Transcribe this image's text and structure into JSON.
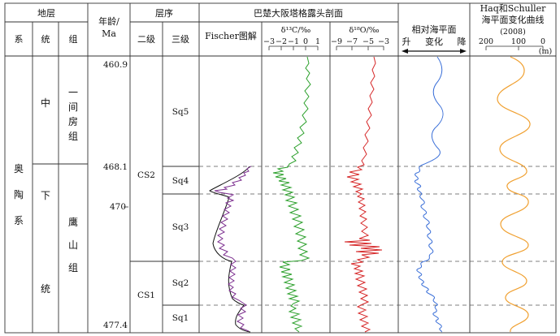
{
  "header": {
    "stratum": "地层",
    "system": "系",
    "series": "统",
    "group": "组",
    "age_line1": "年龄/",
    "age_line2": "Ma",
    "sequence": "层序",
    "order2": "二级",
    "order3": "三级",
    "section_title": "巴楚大阪塔格露头剖面",
    "fischer": "Fischer图解",
    "d13c_label": "δ¹³C/‰",
    "d13c_ticks": [
      "−3",
      "−2",
      "−1",
      "0",
      "1"
    ],
    "d18o_label": "δ¹⁸O/‰",
    "d18o_ticks": [
      "−9",
      "−7",
      "−5",
      "−3"
    ],
    "rsl_title": "相对海平面",
    "rsl_rise": "升",
    "rsl_change": "变化",
    "rsl_fall": "降",
    "haq_line1": "Haq和Schuller",
    "haq_line2": "海平面变化曲线",
    "haq_line3": "(2008)",
    "haq_ticks": [
      "200",
      "100",
      "0"
    ],
    "haq_unit": "(m)"
  },
  "strat": {
    "system_name": [
      "奥",
      "陶",
      "系"
    ],
    "series_middle": "中",
    "series_lower": [
      "下",
      "统"
    ],
    "group_upper": [
      "一",
      "间",
      "房",
      "组"
    ],
    "group_lower": [
      "鹰",
      "山",
      "组"
    ]
  },
  "ages": {
    "top": "460.9",
    "boundary": "468.1",
    "mid": "470",
    "bottom": "477.4"
  },
  "sequences": {
    "second_order": [
      "CS2",
      "CS1"
    ],
    "third_order": [
      "Sq5",
      "Sq4",
      "Sq3",
      "Sq2",
      "Sq1"
    ]
  },
  "colors": {
    "d13c_curve": "#2ca02c",
    "d18o_curve": "#d62728",
    "fischer_curve": "#7b2d8e",
    "fischer_trend": "#111111",
    "rsl_curve": "#3a6fd8",
    "haq_curve": "#f0a030",
    "frame": "#333333",
    "dashed": "#555555"
  }
}
